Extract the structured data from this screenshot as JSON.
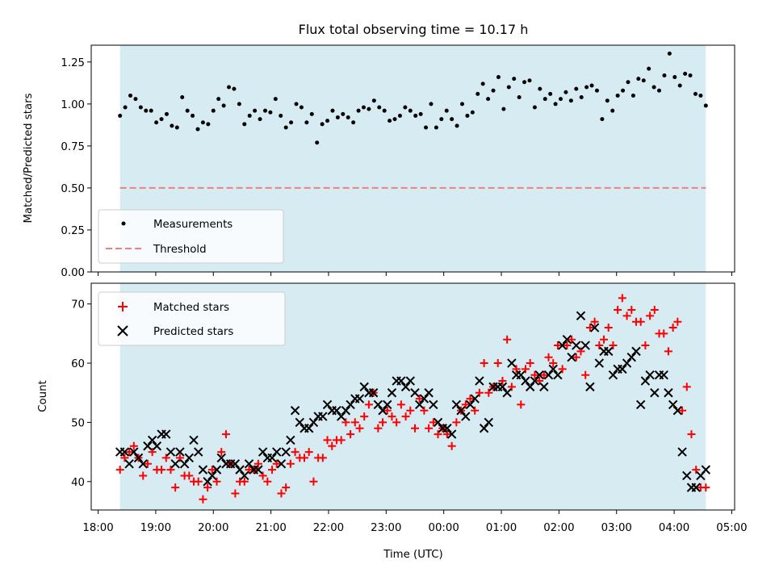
{
  "chart_data": [
    {
      "type": "scatter",
      "title": "Flux total observing time = 10.17 h",
      "xlabel": "",
      "ylabel": "Matched/Predicted stars",
      "ylim": [
        0,
        1.35
      ],
      "yticks": [
        0.0,
        0.25,
        0.5,
        0.75,
        1.0,
        1.25
      ],
      "ytick_labels": [
        "0.00",
        "0.25",
        "0.50",
        "0.75",
        "1.00",
        "1.25"
      ],
      "xlim_hours": [
        17.88,
        29.05
      ],
      "shaded_span_hours": [
        18.38,
        28.55
      ],
      "shade_color": "#add8e6",
      "legend_position": "lower-left",
      "threshold": 0.5,
      "series": [
        {
          "name": "Measurements",
          "marker": "dot",
          "color": "#000000",
          "x": [
            18.38,
            18.47,
            18.56,
            18.65,
            18.74,
            18.83,
            18.92,
            19.01,
            19.1,
            19.19,
            19.28,
            19.37,
            19.46,
            19.55,
            19.64,
            19.73,
            19.82,
            19.91,
            20.0,
            20.09,
            20.18,
            20.27,
            20.36,
            20.45,
            20.54,
            20.63,
            20.72,
            20.81,
            20.9,
            20.99,
            21.08,
            21.17,
            21.26,
            21.35,
            21.44,
            21.53,
            21.62,
            21.71,
            21.8,
            21.89,
            21.98,
            22.07,
            22.16,
            22.25,
            22.34,
            22.43,
            22.52,
            22.61,
            22.7,
            22.79,
            22.88,
            22.97,
            23.06,
            23.15,
            23.24,
            23.33,
            23.42,
            23.51,
            23.6,
            23.69,
            23.78,
            23.87,
            23.96,
            24.05,
            24.14,
            24.23,
            24.32,
            24.41,
            24.5,
            24.59,
            24.68,
            24.77,
            24.86,
            24.95,
            25.04,
            25.13,
            25.22,
            25.31,
            25.4,
            25.49,
            25.58,
            25.67,
            25.76,
            25.85,
            25.94,
            26.03,
            26.12,
            26.21,
            26.3,
            26.39,
            26.48,
            26.57,
            26.66,
            26.75,
            26.84,
            26.93,
            27.02,
            27.11,
            27.2,
            27.29,
            27.38,
            27.47,
            27.56,
            27.65,
            27.74,
            27.83,
            27.92,
            28.01,
            28.1,
            28.19,
            28.28,
            28.37,
            28.46,
            28.55
          ],
          "y": [
            0.93,
            0.98,
            1.05,
            1.03,
            0.98,
            0.96,
            0.96,
            0.89,
            0.91,
            0.94,
            0.87,
            0.86,
            1.04,
            0.96,
            0.93,
            0.85,
            0.89,
            0.88,
            0.96,
            1.03,
            0.99,
            1.1,
            1.09,
            1.0,
            0.88,
            0.93,
            0.96,
            0.91,
            0.96,
            0.95,
            1.03,
            0.93,
            0.86,
            0.89,
            1.0,
            0.98,
            0.89,
            0.94,
            0.77,
            0.88,
            0.9,
            0.96,
            0.92,
            0.94,
            0.92,
            0.89,
            0.96,
            0.98,
            0.97,
            1.02,
            0.98,
            0.96,
            0.9,
            0.91,
            0.93,
            0.98,
            0.96,
            0.93,
            0.94,
            0.86,
            1.0,
            0.86,
            0.91,
            0.96,
            0.91,
            0.87,
            1.0,
            0.93,
            0.95,
            1.06,
            1.12,
            1.03,
            1.08,
            1.16,
            0.97,
            1.1,
            1.15,
            1.04,
            1.13,
            1.14,
            0.98,
            1.09,
            1.03,
            1.06,
            1.0,
            1.03,
            1.07,
            1.02,
            1.09,
            1.04,
            1.1,
            1.11,
            1.08,
            0.91,
            1.02,
            0.96,
            1.05,
            1.08,
            1.13,
            1.05,
            1.15,
            1.14,
            1.21,
            1.1,
            1.08,
            1.17,
            1.3,
            1.16,
            1.11,
            1.18,
            1.17,
            1.06,
            1.05,
            0.99
          ]
        },
        {
          "name": "Threshold",
          "marker": "dashed-line",
          "color": "#f08080",
          "value": 0.5
        }
      ],
      "legend": [
        "Measurements",
        "Threshold"
      ]
    },
    {
      "type": "scatter",
      "title": "",
      "xlabel": "Time (UTC)",
      "ylabel": "Count",
      "ylim": [
        35.2,
        73.5
      ],
      "yticks": [
        40,
        50,
        60,
        70
      ],
      "ytick_labels": [
        "40",
        "50",
        "60",
        "70"
      ],
      "xlim_hours": [
        17.88,
        29.05
      ],
      "xticks_hours": [
        18,
        19,
        20,
        21,
        22,
        23,
        24,
        25,
        26,
        27,
        28,
        29
      ],
      "xtick_labels": [
        "18:00",
        "19:00",
        "20:00",
        "21:00",
        "22:00",
        "23:00",
        "00:00",
        "01:00",
        "02:00",
        "03:00",
        "04:00",
        "05:00"
      ],
      "shaded_span_hours": [
        18.38,
        28.55
      ],
      "shade_color": "#add8e6",
      "legend_position": "top-left",
      "series": [
        {
          "name": "Matched stars",
          "marker": "plus",
          "color": "#ff0000",
          "x": [
            18.38,
            18.46,
            18.54,
            18.62,
            18.7,
            18.78,
            18.86,
            18.94,
            19.02,
            19.1,
            19.18,
            19.26,
            19.34,
            19.42,
            19.5,
            19.58,
            19.66,
            19.74,
            19.82,
            19.9,
            19.98,
            20.06,
            20.14,
            20.22,
            20.3,
            20.38,
            20.46,
            20.54,
            20.62,
            20.7,
            20.78,
            20.86,
            20.94,
            21.02,
            21.1,
            21.18,
            21.26,
            21.34,
            21.42,
            21.5,
            21.58,
            21.66,
            21.74,
            21.82,
            21.9,
            21.98,
            22.06,
            22.14,
            22.22,
            22.3,
            22.38,
            22.46,
            22.54,
            22.62,
            22.7,
            22.78,
            22.86,
            22.94,
            23.02,
            23.1,
            23.18,
            23.26,
            23.34,
            23.42,
            23.5,
            23.58,
            23.66,
            23.74,
            23.82,
            23.9,
            23.98,
            24.06,
            24.14,
            24.22,
            24.3,
            24.38,
            24.46,
            24.54,
            24.62,
            24.7,
            24.78,
            24.86,
            24.94,
            25.02,
            25.1,
            25.18,
            25.26,
            25.34,
            25.42,
            25.5,
            25.58,
            25.66,
            25.74,
            25.82,
            25.9,
            25.98,
            26.06,
            26.14,
            26.22,
            26.3,
            26.38,
            26.46,
            26.54,
            26.62,
            26.7,
            26.78,
            26.86,
            26.94,
            27.02,
            27.1,
            27.18,
            27.26,
            27.34,
            27.42,
            27.5,
            27.58,
            27.66,
            27.74,
            27.82,
            27.9,
            27.98,
            28.06,
            28.14,
            28.22,
            28.3,
            28.38,
            28.46,
            28.55
          ],
          "y": [
            42,
            44,
            45,
            46,
            44,
            41,
            43,
            45,
            42,
            42,
            44,
            42,
            39,
            44,
            41,
            41,
            40,
            40,
            37,
            39,
            42,
            40,
            45,
            48,
            43,
            38,
            40,
            40,
            42,
            42,
            43,
            41,
            40,
            42,
            43,
            38,
            39,
            43,
            45,
            44,
            44,
            45,
            40,
            44,
            44,
            47,
            46,
            47,
            47,
            50,
            48,
            50,
            49,
            51,
            53,
            55,
            49,
            50,
            52,
            51,
            50,
            53,
            51,
            52,
            49,
            54,
            52,
            49,
            50,
            48,
            49,
            48,
            46,
            50,
            52,
            53,
            54,
            52,
            55,
            60,
            55,
            56,
            60,
            57,
            64,
            56,
            59,
            53,
            59,
            60,
            58,
            57,
            58,
            61,
            60,
            63,
            59,
            63,
            64,
            61,
            62,
            58,
            66,
            67,
            63,
            64,
            66,
            63,
            69,
            71,
            68,
            69,
            67,
            67,
            63,
            68,
            69,
            65,
            65,
            62,
            66,
            67,
            52,
            56,
            48,
            42,
            39,
            39
          ]
        },
        {
          "name": "Predicted stars",
          "marker": "x",
          "color": "#000000",
          "x": [
            18.38,
            18.46,
            18.54,
            18.62,
            18.7,
            18.78,
            18.86,
            18.94,
            19.02,
            19.1,
            19.18,
            19.26,
            19.34,
            19.42,
            19.5,
            19.58,
            19.66,
            19.74,
            19.82,
            19.9,
            19.98,
            20.06,
            20.14,
            20.22,
            20.3,
            20.38,
            20.46,
            20.54,
            20.62,
            20.7,
            20.78,
            20.86,
            20.94,
            21.02,
            21.1,
            21.18,
            21.26,
            21.34,
            21.42,
            21.5,
            21.58,
            21.66,
            21.74,
            21.82,
            21.9,
            21.98,
            22.06,
            22.14,
            22.22,
            22.3,
            22.38,
            22.46,
            22.54,
            22.62,
            22.7,
            22.78,
            22.86,
            22.94,
            23.02,
            23.1,
            23.18,
            23.26,
            23.34,
            23.42,
            23.5,
            23.58,
            23.66,
            23.74,
            23.82,
            23.9,
            23.98,
            24.06,
            24.14,
            24.22,
            24.3,
            24.38,
            24.46,
            24.54,
            24.62,
            24.7,
            24.78,
            24.86,
            24.94,
            25.02,
            25.1,
            25.18,
            25.26,
            25.34,
            25.42,
            25.5,
            25.58,
            25.66,
            25.74,
            25.82,
            25.9,
            25.98,
            26.06,
            26.14,
            26.22,
            26.3,
            26.38,
            26.46,
            26.54,
            26.62,
            26.7,
            26.78,
            26.86,
            26.94,
            27.02,
            27.1,
            27.18,
            27.26,
            27.34,
            27.42,
            27.5,
            27.58,
            27.66,
            27.74,
            27.82,
            27.9,
            27.98,
            28.06,
            28.14,
            28.22,
            28.3,
            28.38,
            28.46,
            28.55
          ],
          "y": [
            45,
            45,
            43,
            45,
            44,
            43,
            46,
            47,
            46,
            48,
            48,
            45,
            43,
            45,
            43,
            44,
            47,
            45,
            42,
            40,
            41,
            42,
            44,
            43,
            43,
            43,
            42,
            41,
            43,
            42,
            42,
            45,
            44,
            44,
            45,
            43,
            45,
            47,
            52,
            50,
            49,
            49,
            50,
            51,
            51,
            53,
            52,
            52,
            51,
            52,
            53,
            54,
            54,
            56,
            55,
            55,
            53,
            52,
            53,
            55,
            57,
            57,
            56,
            57,
            55,
            53,
            54,
            55,
            53,
            50,
            49,
            49,
            48,
            53,
            52,
            51,
            53,
            54,
            57,
            49,
            50,
            56,
            56,
            56,
            55,
            60,
            58,
            58,
            57,
            56,
            57,
            58,
            56,
            58,
            59,
            58,
            63,
            64,
            61,
            63,
            68,
            63,
            56,
            66,
            60,
            62,
            62,
            58,
            59,
            59,
            60,
            61,
            62,
            53,
            57,
            58,
            55,
            58,
            58,
            55,
            53,
            52,
            45,
            41,
            39,
            39,
            41,
            42
          ]
        }
      ],
      "legend": [
        "Matched stars",
        "Predicted stars"
      ]
    }
  ]
}
